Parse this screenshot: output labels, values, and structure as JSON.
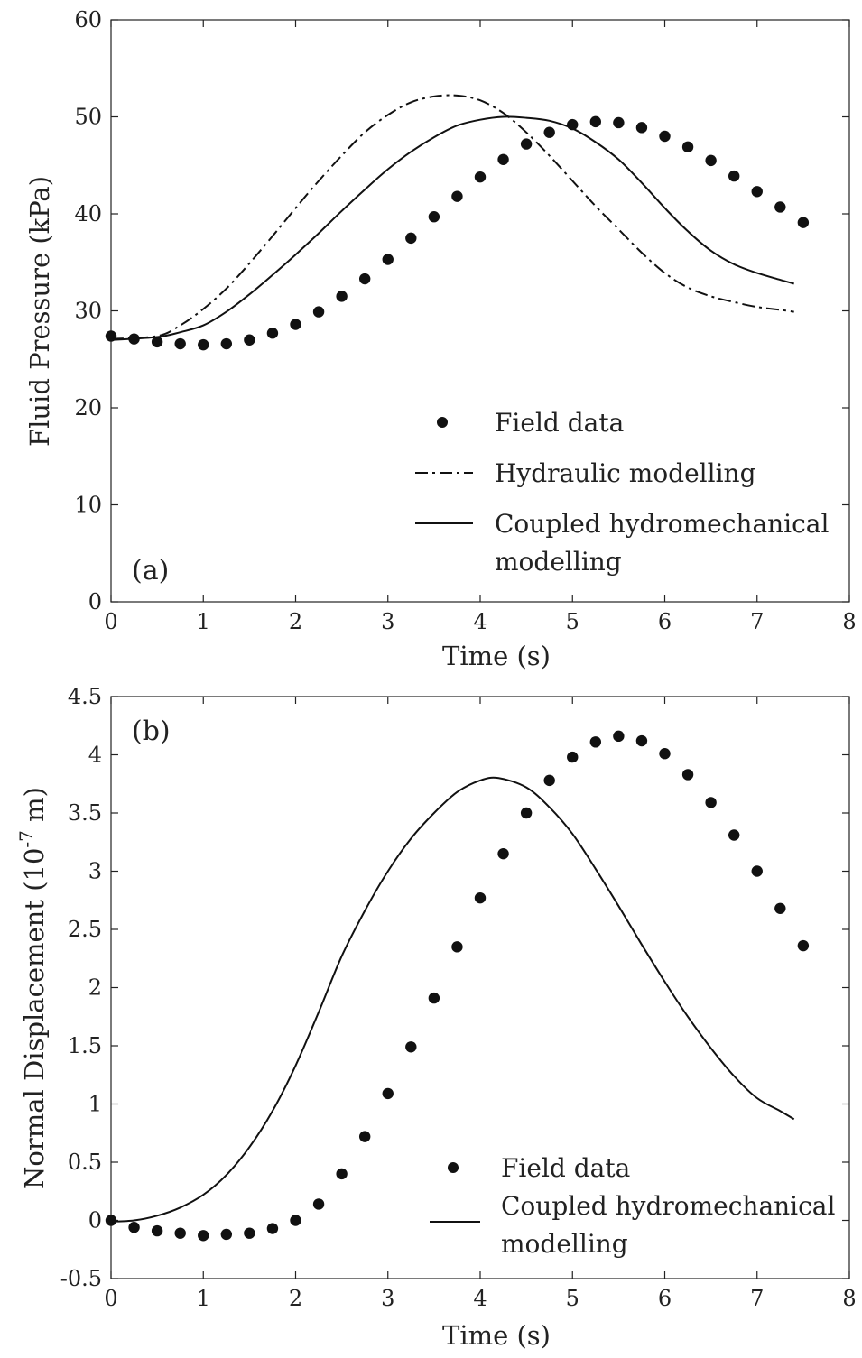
{
  "chart_data": [
    {
      "type": "line",
      "panel_label": "(a)",
      "xlabel": "Time (s)",
      "ylabel": "Fluid Pressure (kPa)",
      "xlim": [
        0,
        8
      ],
      "ylim": [
        0,
        60
      ],
      "xticks": [
        "0",
        "1",
        "2",
        "3",
        "4",
        "5",
        "6",
        "7",
        "8"
      ],
      "yticks": [
        "0",
        "10",
        "20",
        "30",
        "40",
        "50",
        "60"
      ],
      "grid": false,
      "legend_position": "bottom-right",
      "series": [
        {
          "name": "Field data",
          "style": "markers",
          "color": "#111111",
          "x": [
            0,
            0.25,
            0.5,
            0.75,
            1,
            1.25,
            1.5,
            1.75,
            2,
            2.25,
            2.5,
            2.75,
            3,
            3.25,
            3.5,
            3.75,
            4,
            4.25,
            4.5,
            4.75,
            5,
            5.25,
            5.5,
            5.75,
            6,
            6.25,
            6.5,
            6.75,
            7,
            7.25,
            7.5
          ],
          "y": [
            27.4,
            27.1,
            26.8,
            26.6,
            26.5,
            26.6,
            27.0,
            27.7,
            28.6,
            29.9,
            31.5,
            33.3,
            35.3,
            37.5,
            39.7,
            41.8,
            43.8,
            45.6,
            47.2,
            48.4,
            49.2,
            49.5,
            49.4,
            48.9,
            48.0,
            46.9,
            45.5,
            43.9,
            42.3,
            40.7,
            39.1
          ]
        },
        {
          "name": "Hydraulic modelling",
          "style": "dash-dot",
          "color": "#111111",
          "x": [
            0,
            0.5,
            0.75,
            1,
            1.25,
            1.5,
            1.75,
            2,
            2.25,
            2.5,
            2.75,
            3,
            3.25,
            3.5,
            3.75,
            4,
            4.25,
            4.5,
            4.75,
            5,
            5.25,
            5.5,
            5.75,
            6,
            6.25,
            6.5,
            6.75,
            7,
            7.25,
            7.4
          ],
          "y": [
            27.1,
            27.4,
            28.5,
            30.2,
            32.3,
            34.9,
            37.7,
            40.6,
            43.4,
            46.0,
            48.4,
            50.2,
            51.5,
            52.1,
            52.2,
            51.7,
            50.4,
            48.4,
            46.0,
            43.4,
            40.8,
            38.4,
            36.0,
            33.9,
            32.4,
            31.5,
            30.9,
            30.4,
            30.1,
            29.9
          ]
        },
        {
          "name": "Coupled hydromechanical modelling",
          "style": "solid",
          "color": "#111111",
          "x": [
            0,
            0.5,
            0.75,
            1,
            1.25,
            1.5,
            1.75,
            2,
            2.25,
            2.5,
            2.75,
            3,
            3.25,
            3.5,
            3.75,
            4,
            4.25,
            4.5,
            4.75,
            5,
            5.25,
            5.5,
            5.75,
            6,
            6.25,
            6.5,
            6.75,
            7,
            7.25,
            7.4
          ],
          "y": [
            27.0,
            27.3,
            27.8,
            28.5,
            29.9,
            31.7,
            33.7,
            35.8,
            38.0,
            40.3,
            42.5,
            44.6,
            46.4,
            47.9,
            49.1,
            49.7,
            50.0,
            49.9,
            49.6,
            48.8,
            47.4,
            45.6,
            43.2,
            40.6,
            38.2,
            36.2,
            34.8,
            33.9,
            33.2,
            32.8
          ]
        }
      ],
      "legend": {
        "entries": [
          "Field data",
          "Hydraulic modelling",
          "Coupled hydromechanical",
          "modelling"
        ]
      }
    },
    {
      "type": "line",
      "panel_label": "(b)",
      "xlabel": "Time (s)",
      "ylabel": "Normal Displacement (10",
      "ylabel_sup": "-7",
      "ylabel_tail": " m)",
      "xlim": [
        0,
        8
      ],
      "ylim": [
        -0.5,
        4.5
      ],
      "xticks": [
        "0",
        "1",
        "2",
        "3",
        "4",
        "5",
        "6",
        "7",
        "8"
      ],
      "yticks": [
        "-0.5",
        "0",
        "0.5",
        "1",
        "1.5",
        "2",
        "2.5",
        "3",
        "3.5",
        "4",
        "4.5"
      ],
      "grid": false,
      "legend_position": "bottom-right",
      "series": [
        {
          "name": "Field data",
          "style": "markers",
          "color": "#111111",
          "x": [
            0,
            0.25,
            0.5,
            0.75,
            1,
            1.25,
            1.5,
            1.75,
            2,
            2.25,
            2.5,
            2.75,
            3,
            3.25,
            3.5,
            3.75,
            4,
            4.25,
            4.5,
            4.75,
            5,
            5.25,
            5.5,
            5.75,
            6,
            6.25,
            6.5,
            6.75,
            7,
            7.25,
            7.5
          ],
          "y": [
            0.0,
            -0.06,
            -0.09,
            -0.11,
            -0.13,
            -0.12,
            -0.11,
            -0.07,
            0.0,
            0.14,
            0.4,
            0.72,
            1.09,
            1.49,
            1.91,
            2.35,
            2.77,
            3.15,
            3.5,
            3.78,
            3.98,
            4.11,
            4.16,
            4.12,
            4.01,
            3.83,
            3.59,
            3.31,
            3.0,
            2.68,
            2.36
          ]
        },
        {
          "name": "Coupled hydromechanical modelling",
          "style": "solid",
          "color": "#111111",
          "x": [
            0,
            0.25,
            0.5,
            0.75,
            1,
            1.25,
            1.5,
            1.75,
            2,
            2.25,
            2.5,
            2.75,
            3,
            3.25,
            3.5,
            3.75,
            4,
            4.2,
            4.5,
            4.75,
            5,
            5.25,
            5.5,
            5.75,
            6,
            6.25,
            6.5,
            6.75,
            7,
            7.25,
            7.4
          ],
          "y": [
            -0.01,
            0.0,
            0.04,
            0.11,
            0.22,
            0.39,
            0.63,
            0.94,
            1.33,
            1.79,
            2.27,
            2.66,
            3.0,
            3.28,
            3.5,
            3.68,
            3.78,
            3.8,
            3.72,
            3.55,
            3.32,
            3.02,
            2.7,
            2.37,
            2.05,
            1.75,
            1.48,
            1.24,
            1.05,
            0.94,
            0.87
          ]
        }
      ],
      "legend": {
        "entries": [
          "Field data",
          "Coupled hydromechanical",
          "modelling"
        ]
      }
    }
  ]
}
